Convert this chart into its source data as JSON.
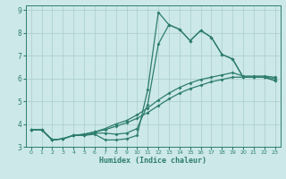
{
  "title": "",
  "xlabel": "Humidex (Indice chaleur)",
  "bg_color": "#cce8e8",
  "grid_color": "#aacccc",
  "line_color": "#2e7d6e",
  "xlim": [
    -0.5,
    23.5
  ],
  "ylim": [
    3.0,
    9.2
  ],
  "xticks": [
    0,
    1,
    2,
    3,
    4,
    5,
    6,
    7,
    8,
    9,
    10,
    11,
    12,
    13,
    14,
    15,
    16,
    17,
    18,
    19,
    20,
    21,
    22,
    23
  ],
  "yticks": [
    3,
    4,
    5,
    6,
    7,
    8,
    9
  ],
  "line1_x": [
    0,
    1,
    2,
    3,
    4,
    5,
    6,
    7,
    8,
    9,
    10,
    11,
    12,
    13,
    14,
    15,
    16,
    17,
    18,
    19,
    20,
    21,
    22,
    23
  ],
  "line1_y": [
    3.75,
    3.75,
    3.3,
    3.35,
    3.5,
    3.5,
    3.55,
    3.3,
    3.3,
    3.35,
    3.5,
    5.5,
    8.9,
    8.35,
    8.15,
    7.65,
    8.1,
    7.8,
    7.05,
    6.85,
    6.05,
    6.05,
    6.05,
    5.9
  ],
  "line2_x": [
    0,
    1,
    2,
    3,
    4,
    5,
    6,
    7,
    8,
    9,
    10,
    11,
    12,
    13,
    14,
    15,
    16,
    17,
    18,
    19,
    20,
    21,
    22,
    23
  ],
  "line2_y": [
    3.75,
    3.75,
    3.3,
    3.35,
    3.5,
    3.5,
    3.6,
    3.6,
    3.55,
    3.6,
    3.8,
    4.85,
    7.5,
    8.35,
    8.15,
    7.65,
    8.1,
    7.8,
    7.05,
    6.85,
    6.05,
    6.05,
    6.05,
    5.9
  ],
  "line3_x": [
    0,
    1,
    2,
    3,
    4,
    5,
    6,
    7,
    8,
    9,
    10,
    11,
    12,
    13,
    14,
    15,
    16,
    17,
    18,
    19,
    20,
    21,
    22,
    23
  ],
  "line3_y": [
    3.75,
    3.75,
    3.3,
    3.35,
    3.5,
    3.55,
    3.65,
    3.75,
    3.9,
    4.05,
    4.25,
    4.5,
    4.8,
    5.1,
    5.35,
    5.55,
    5.7,
    5.85,
    5.95,
    6.05,
    6.05,
    6.05,
    6.05,
    6.0
  ],
  "line4_x": [
    0,
    1,
    2,
    3,
    4,
    5,
    6,
    7,
    8,
    9,
    10,
    11,
    12,
    13,
    14,
    15,
    16,
    17,
    18,
    19,
    20,
    21,
    22,
    23
  ],
  "line4_y": [
    3.75,
    3.75,
    3.3,
    3.35,
    3.5,
    3.55,
    3.65,
    3.8,
    4.0,
    4.15,
    4.4,
    4.7,
    5.05,
    5.35,
    5.6,
    5.8,
    5.95,
    6.05,
    6.15,
    6.25,
    6.1,
    6.1,
    6.1,
    6.05
  ]
}
